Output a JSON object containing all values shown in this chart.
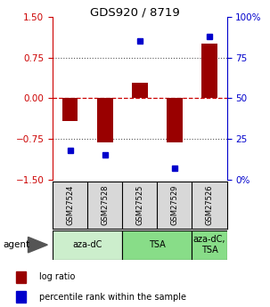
{
  "title": "GDS920 / 8719",
  "samples": [
    "GSM27524",
    "GSM27528",
    "GSM27525",
    "GSM27529",
    "GSM27526"
  ],
  "log_ratio": [
    -0.42,
    -0.82,
    0.28,
    -0.82,
    1.0
  ],
  "percentile_rank": [
    18,
    15,
    85,
    7,
    88
  ],
  "ylim_left": [
    -1.5,
    1.5
  ],
  "ylim_right": [
    0,
    100
  ],
  "yticks_left": [
    -1.5,
    -0.75,
    0,
    0.75,
    1.5
  ],
  "yticks_right": [
    0,
    25,
    50,
    75,
    100
  ],
  "ytick_labels_right": [
    "0%",
    "25",
    "50",
    "75",
    "100%"
  ],
  "bar_color": "#990000",
  "dot_color": "#0000cc",
  "hline_color": "#cc0000",
  "dotted_color": "#555555",
  "bg_color": "#ffffff",
  "groups_info": [
    {
      "label": "aza-dC",
      "start": 0,
      "end": 1,
      "color": "#cceecc"
    },
    {
      "label": "TSA",
      "start": 2,
      "end": 3,
      "color": "#88dd88"
    },
    {
      "label": "aza-dC,\nTSA",
      "start": 4,
      "end": 4,
      "color": "#88dd88"
    }
  ],
  "legend_items": [
    {
      "color": "#990000",
      "label": "log ratio"
    },
    {
      "color": "#0000cc",
      "label": "percentile rank within the sample"
    }
  ]
}
